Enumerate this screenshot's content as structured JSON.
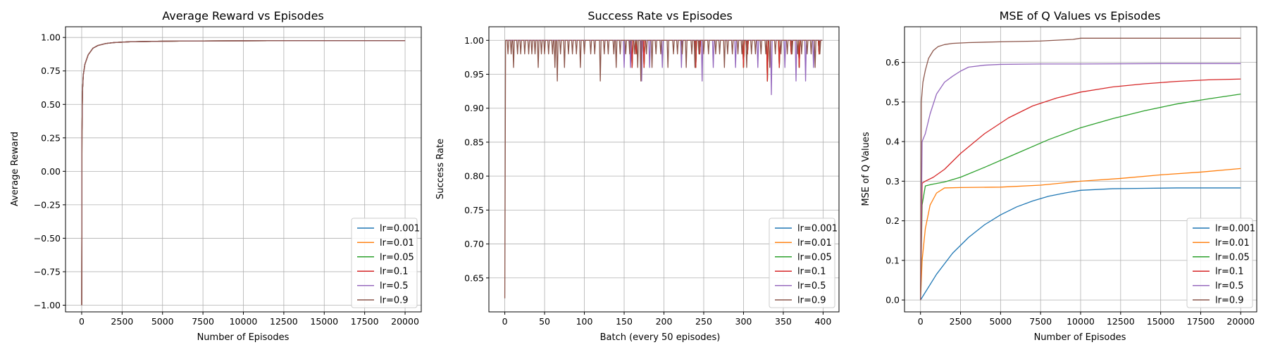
{
  "chart_data": [
    {
      "type": "line",
      "title": "Average Reward vs Episodes",
      "xlabel": "Number of Episodes",
      "ylabel": "Average Reward",
      "xlim": [
        -1000,
        21000
      ],
      "ylim": [
        -1.05,
        1.08
      ],
      "xticks": [
        0,
        2500,
        5000,
        7500,
        10000,
        12500,
        15000,
        17500,
        20000
      ],
      "yticks": [
        -1.0,
        -0.75,
        -0.5,
        -0.25,
        0.0,
        0.25,
        0.5,
        0.75,
        1.0
      ],
      "xtick_labels": [
        "0",
        "2500",
        "5000",
        "7500",
        "10000",
        "12500",
        "15000",
        "17500",
        "20000"
      ],
      "ytick_labels": [
        "−1.00",
        "−0.75",
        "−0.50",
        "−0.25",
        "0.00",
        "0.25",
        "0.50",
        "0.75",
        "1.00"
      ],
      "grid": true,
      "legend": "lower right",
      "series": [
        {
          "name": "lr=0.001",
          "color": "#1f77b4",
          "x": [
            1,
            20,
            50,
            100,
            200,
            400,
            700,
            1000,
            1500,
            2000,
            3000,
            5000,
            7500,
            10000,
            15000,
            20000
          ],
          "y": [
            -1.0,
            0.3,
            0.6,
            0.72,
            0.8,
            0.87,
            0.92,
            0.94,
            0.955,
            0.962,
            0.968,
            0.972,
            0.974,
            0.975,
            0.976,
            0.976
          ]
        },
        {
          "name": "lr=0.01",
          "color": "#ff7f0e",
          "x": [
            1,
            20,
            50,
            100,
            200,
            400,
            700,
            1000,
            1500,
            2000,
            3000,
            5000,
            7500,
            10000,
            15000,
            20000
          ],
          "y": [
            -1.0,
            0.3,
            0.6,
            0.72,
            0.8,
            0.87,
            0.92,
            0.94,
            0.955,
            0.962,
            0.968,
            0.972,
            0.974,
            0.975,
            0.976,
            0.976
          ]
        },
        {
          "name": "lr=0.05",
          "color": "#2ca02c",
          "x": [
            1,
            20,
            50,
            100,
            200,
            400,
            700,
            1000,
            1500,
            2000,
            3000,
            5000,
            7500,
            10000,
            15000,
            20000
          ],
          "y": [
            -1.0,
            0.3,
            0.6,
            0.72,
            0.8,
            0.87,
            0.92,
            0.94,
            0.955,
            0.962,
            0.968,
            0.972,
            0.974,
            0.975,
            0.976,
            0.976
          ]
        },
        {
          "name": "lr=0.1",
          "color": "#d62728",
          "x": [
            1,
            20,
            50,
            100,
            200,
            400,
            700,
            1000,
            1500,
            2000,
            3000,
            5000,
            7500,
            10000,
            15000,
            20000
          ],
          "y": [
            -1.0,
            0.3,
            0.6,
            0.72,
            0.8,
            0.87,
            0.92,
            0.94,
            0.955,
            0.962,
            0.968,
            0.972,
            0.974,
            0.975,
            0.976,
            0.976
          ]
        },
        {
          "name": "lr=0.5",
          "color": "#9467bd",
          "x": [
            1,
            20,
            50,
            100,
            200,
            400,
            700,
            1000,
            1500,
            2000,
            3000,
            5000,
            7500,
            10000,
            15000,
            20000
          ],
          "y": [
            -1.0,
            0.3,
            0.6,
            0.72,
            0.8,
            0.87,
            0.92,
            0.94,
            0.955,
            0.962,
            0.968,
            0.972,
            0.974,
            0.975,
            0.976,
            0.976
          ]
        },
        {
          "name": "lr=0.9",
          "color": "#8c564b",
          "x": [
            1,
            20,
            50,
            100,
            200,
            400,
            700,
            1000,
            1500,
            2000,
            3000,
            5000,
            7500,
            10000,
            15000,
            20000
          ],
          "y": [
            -1.0,
            0.3,
            0.6,
            0.72,
            0.8,
            0.87,
            0.92,
            0.94,
            0.955,
            0.962,
            0.968,
            0.972,
            0.974,
            0.975,
            0.976,
            0.976
          ]
        }
      ]
    },
    {
      "type": "line",
      "title": "Success Rate vs Episodes",
      "xlabel": "Batch (every 50 episodes)",
      "ylabel": "Success Rate",
      "xlim": [
        -20,
        420
      ],
      "ylim": [
        0.6,
        1.02
      ],
      "xticks": [
        0,
        50,
        100,
        150,
        200,
        250,
        300,
        350,
        400
      ],
      "yticks": [
        0.65,
        0.7,
        0.75,
        0.8,
        0.85,
        0.9,
        0.95,
        1.0
      ],
      "xtick_labels": [
        "0",
        "50",
        "100",
        "150",
        "200",
        "250",
        "300",
        "350",
        "400"
      ],
      "ytick_labels": [
        "0.65",
        "0.70",
        "0.75",
        "0.80",
        "0.85",
        "0.90",
        "0.95",
        "1.00"
      ],
      "grid": true,
      "legend": "lower right",
      "series": [
        {
          "name": "lr=0.001",
          "color": "#1f77b4",
          "dips_x": [
            160,
            165,
            175,
            240,
            245,
            300,
            305,
            330,
            345,
            360,
            370,
            395
          ],
          "dips_y": [
            0.96,
            0.98,
            0.96,
            0.96,
            0.98,
            0.96,
            0.98,
            0.94,
            0.96,
            0.98,
            0.96,
            0.98
          ]
        },
        {
          "name": "lr=0.01",
          "color": "#ff7f0e",
          "dips_x": [
            160,
            165,
            175,
            240,
            245,
            300,
            305,
            330,
            345,
            360,
            370,
            395
          ],
          "dips_y": [
            0.96,
            0.98,
            0.96,
            0.96,
            0.98,
            0.96,
            0.98,
            0.94,
            0.96,
            0.98,
            0.96,
            0.98
          ]
        },
        {
          "name": "lr=0.05",
          "color": "#2ca02c",
          "dips_x": [
            160,
            165,
            175,
            240,
            245,
            300,
            305,
            330,
            345,
            360,
            370,
            395
          ],
          "dips_y": [
            0.96,
            0.98,
            0.96,
            0.96,
            0.98,
            0.96,
            0.98,
            0.94,
            0.96,
            0.98,
            0.96,
            0.98
          ]
        },
        {
          "name": "lr=0.1",
          "color": "#d62728",
          "dips_x": [
            160,
            165,
            175,
            240,
            245,
            300,
            305,
            330,
            345,
            360,
            370,
            395
          ],
          "dips_y": [
            0.96,
            0.98,
            0.96,
            0.96,
            0.98,
            0.96,
            0.98,
            0.94,
            0.96,
            0.98,
            0.96,
            0.98
          ]
        },
        {
          "name": "lr=0.5",
          "color": "#9467bd",
          "dips_x": [
            150,
            158,
            172,
            182,
            198,
            222,
            248,
            262,
            290,
            318,
            335,
            352,
            366,
            378,
            388
          ],
          "dips_y": [
            0.96,
            0.96,
            0.94,
            0.96,
            0.96,
            0.96,
            0.94,
            0.96,
            0.96,
            0.96,
            0.92,
            0.96,
            0.94,
            0.94,
            0.96
          ]
        },
        {
          "name": "lr=0.9",
          "color": "#8c564b",
          "dips_x": [
            4,
            8,
            11,
            16,
            20,
            25,
            30,
            34,
            38,
            42,
            46,
            50,
            55,
            60,
            63,
            66,
            70,
            75,
            80,
            85,
            90,
            95,
            100,
            108,
            113,
            120,
            125,
            130,
            137,
            140,
            145,
            152,
            157,
            163,
            167,
            171,
            178,
            185,
            190,
            196,
            205,
            212,
            217,
            223,
            228,
            235,
            239,
            244,
            250,
            256,
            265,
            270,
            276,
            280,
            286,
            293,
            298,
            304,
            310,
            315,
            322,
            328,
            333,
            340,
            347,
            355,
            361,
            368,
            373,
            380,
            385,
            390,
            396
          ],
          "dips_y": [
            0.98,
            0.98,
            0.96,
            0.98,
            0.98,
            0.98,
            0.98,
            0.98,
            0.98,
            0.96,
            0.98,
            0.98,
            0.98,
            0.98,
            0.96,
            0.94,
            0.98,
            0.96,
            0.98,
            0.98,
            0.98,
            0.96,
            0.98,
            0.98,
            0.98,
            0.94,
            0.98,
            0.98,
            0.98,
            0.96,
            0.98,
            0.98,
            0.98,
            0.98,
            0.96,
            0.94,
            0.98,
            0.96,
            0.98,
            0.98,
            0.96,
            0.98,
            0.98,
            0.98,
            0.96,
            0.98,
            0.96,
            0.98,
            0.98,
            0.98,
            0.98,
            0.98,
            0.96,
            0.98,
            0.98,
            0.98,
            0.98,
            0.96,
            0.98,
            0.98,
            0.98,
            0.98,
            0.96,
            0.98,
            0.98,
            0.98,
            0.98,
            0.98,
            0.98,
            0.98,
            0.98,
            0.96,
            0.98
          ],
          "start_y": 0.62,
          "max_y": 1.0
        }
      ]
    },
    {
      "type": "line",
      "title": "MSE of Q Values vs Episodes",
      "xlabel": "Number of Episodes",
      "ylabel": "MSE of Q Values",
      "xlim": [
        -1000,
        21000
      ],
      "ylim": [
        -0.03,
        0.69
      ],
      "xticks": [
        0,
        2500,
        5000,
        7500,
        10000,
        12500,
        15000,
        17500,
        20000
      ],
      "yticks": [
        0.0,
        0.1,
        0.2,
        0.3,
        0.4,
        0.5,
        0.6
      ],
      "xtick_labels": [
        "0",
        "2500",
        "5000",
        "7500",
        "10000",
        "12500",
        "15000",
        "17500",
        "20000"
      ],
      "ytick_labels": [
        "0.0",
        "0.1",
        "0.2",
        "0.3",
        "0.4",
        "0.5",
        "0.6"
      ],
      "grid": true,
      "legend": "lower right",
      "series": [
        {
          "name": "lr=0.001",
          "color": "#1f77b4",
          "x": [
            0,
            1000,
            2000,
            3000,
            4000,
            5000,
            6000,
            7000,
            8000,
            9000,
            10000,
            12000,
            14000,
            16000,
            18000,
            20000
          ],
          "y": [
            0.0,
            0.065,
            0.118,
            0.158,
            0.19,
            0.215,
            0.235,
            0.25,
            0.262,
            0.27,
            0.277,
            0.281,
            0.282,
            0.283,
            0.283,
            0.283
          ]
        },
        {
          "name": "lr=0.01",
          "color": "#ff7f0e",
          "x": [
            0,
            100,
            300,
            600,
            1000,
            1500,
            2500,
            5000,
            7500,
            10000,
            12500,
            15000,
            17500,
            20000
          ],
          "y": [
            0.0,
            0.1,
            0.18,
            0.24,
            0.27,
            0.283,
            0.284,
            0.285,
            0.29,
            0.3,
            0.307,
            0.316,
            0.323,
            0.332
          ]
        },
        {
          "name": "lr=0.05",
          "color": "#2ca02c",
          "x": [
            0,
            100,
            300,
            700,
            1500,
            2500,
            4000,
            6000,
            8000,
            10000,
            12000,
            14000,
            16000,
            18000,
            20000
          ],
          "y": [
            0.0,
            0.24,
            0.288,
            0.292,
            0.298,
            0.31,
            0.335,
            0.37,
            0.405,
            0.435,
            0.458,
            0.478,
            0.495,
            0.508,
            0.52
          ]
        },
        {
          "name": "lr=0.1",
          "color": "#d62728",
          "x": [
            0,
            100,
            300,
            800,
            1500,
            2500,
            4000,
            5500,
            7000,
            8500,
            10000,
            12000,
            14000,
            16000,
            18000,
            20000
          ],
          "y": [
            0.0,
            0.295,
            0.3,
            0.31,
            0.33,
            0.37,
            0.42,
            0.46,
            0.49,
            0.51,
            0.525,
            0.538,
            0.546,
            0.552,
            0.556,
            0.558
          ]
        },
        {
          "name": "lr=0.5",
          "color": "#9467bd",
          "x": [
            0,
            100,
            300,
            600,
            1000,
            1500,
            2000,
            2500,
            3000,
            4000,
            5000,
            7500,
            10000,
            15000,
            20000
          ],
          "y": [
            0.0,
            0.4,
            0.42,
            0.47,
            0.52,
            0.55,
            0.565,
            0.578,
            0.588,
            0.593,
            0.595,
            0.596,
            0.596,
            0.597,
            0.597
          ]
        },
        {
          "name": "lr=0.9",
          "color": "#8c564b",
          "x": [
            0,
            50,
            150,
            300,
            500,
            800,
            1100,
            1500,
            2000,
            3000,
            5000,
            7500,
            9500,
            10000,
            15000,
            20000
          ],
          "y": [
            0.0,
            0.5,
            0.55,
            0.58,
            0.61,
            0.63,
            0.64,
            0.645,
            0.648,
            0.65,
            0.652,
            0.654,
            0.658,
            0.661,
            0.661,
            0.661
          ]
        }
      ]
    }
  ]
}
